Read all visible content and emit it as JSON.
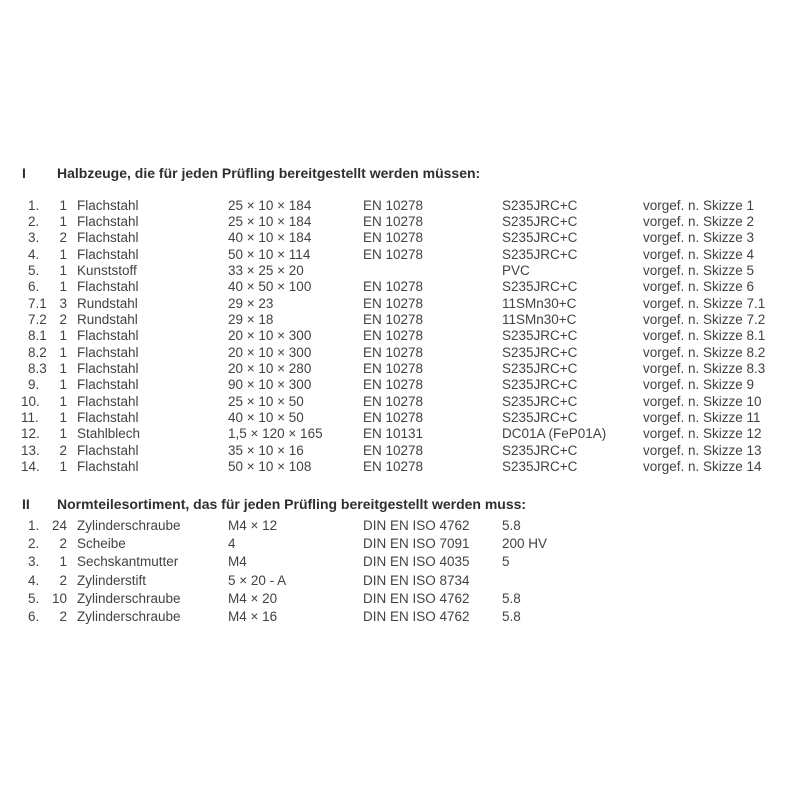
{
  "colors": {
    "background": "#ffffff",
    "body_text": "#424242",
    "heading_text": "#2f2f2f"
  },
  "sections": [
    {
      "numeral": "I",
      "title": "Halbzeuge, die für jeden Prüfling bereitgestellt werden müssen:",
      "columns": [
        "item-number",
        "quantity",
        "part-name",
        "dimensions",
        "standard",
        "material",
        "note"
      ],
      "rows": [
        [
          "1.",
          "1",
          "Flachstahl",
          "25 × 10 × 184",
          "EN 10278",
          "S235JRC+C",
          "vorgef. n. Skizze 1"
        ],
        [
          "2.",
          "1",
          "Flachstahl",
          "25 × 10 × 184",
          "EN 10278",
          "S235JRC+C",
          "vorgef. n. Skizze 2"
        ],
        [
          "3.",
          "2",
          "Flachstahl",
          "40 × 10 × 184",
          "EN 10278",
          "S235JRC+C",
          "vorgef. n. Skizze 3"
        ],
        [
          "4.",
          "1",
          "Flachstahl",
          "50 × 10 × 114",
          "EN 10278",
          "S235JRC+C",
          "vorgef. n. Skizze 4"
        ],
        [
          "5.",
          "1",
          "Kunststoff",
          "33 × 25 × 20",
          "",
          "PVC",
          "vorgef. n. Skizze 5"
        ],
        [
          "6.",
          "1",
          "Flachstahl",
          "40 × 50 × 100",
          "EN 10278",
          "S235JRC+C",
          "vorgef. n. Skizze 6"
        ],
        [
          "7.1",
          "3",
          "Rundstahl",
          "29 × 23",
          "EN 10278",
          "11SMn30+C",
          "vorgef. n. Skizze 7.1"
        ],
        [
          "7.2",
          "2",
          "Rundstahl",
          "29 × 18",
          "EN 10278",
          "11SMn30+C",
          "vorgef. n. Skizze 7.2"
        ],
        [
          "8.1",
          "1",
          "Flachstahl",
          "20 × 10 × 300",
          "EN 10278",
          "S235JRC+C",
          "vorgef. n. Skizze 8.1"
        ],
        [
          "8.2",
          "1",
          "Flachstahl",
          "20 × 10 × 300",
          "EN 10278",
          "S235JRC+C",
          "vorgef. n. Skizze 8.2"
        ],
        [
          "8.3",
          "1",
          "Flachstahl",
          "20 × 10 × 280",
          "EN 10278",
          "S235JRC+C",
          "vorgef. n. Skizze 8.3"
        ],
        [
          "9.",
          "1",
          "Flachstahl",
          "90 × 10 × 300",
          "EN 10278",
          "S235JRC+C",
          "vorgef. n. Skizze 9"
        ],
        [
          "10.",
          "1",
          "Flachstahl",
          "25 × 10 × 50",
          "EN 10278",
          "S235JRC+C",
          "vorgef. n. Skizze 10"
        ],
        [
          "11.",
          "1",
          "Flachstahl",
          "40 × 10 × 50",
          "EN 10278",
          "S235JRC+C",
          "vorgef. n. Skizze 11"
        ],
        [
          "12.",
          "1",
          "Stahlblech",
          "1,5 × 120 × 165",
          "EN 10131",
          "DC01A (FeP01A)",
          "vorgef. n. Skizze 12"
        ],
        [
          "13.",
          "2",
          "Flachstahl",
          "35 × 10 × 16",
          "EN 10278",
          "S235JRC+C",
          "vorgef. n. Skizze 13"
        ],
        [
          "14.",
          "1",
          "Flachstahl",
          "50 × 10 × 108",
          "EN 10278",
          "S235JRC+C",
          "vorgef. n. Skizze 14"
        ]
      ]
    },
    {
      "numeral": "II",
      "title": "Normteilesortiment, das für jeden Prüfling bereitgestellt werden muss:",
      "columns": [
        "item-number",
        "quantity",
        "part-name",
        "dimensions",
        "standard",
        "property-class",
        "note"
      ],
      "rows": [
        [
          "1.",
          "24",
          "Zylinderschraube",
          "M4 × 12",
          "DIN EN ISO 4762",
          "5.8",
          ""
        ],
        [
          "2.",
          "2",
          "Scheibe",
          "4",
          "DIN EN ISO 7091",
          "200 HV",
          ""
        ],
        [
          "3.",
          "1",
          "Sechskantmutter",
          "M4",
          "DIN EN ISO 4035",
          "5",
          ""
        ],
        [
          "4.",
          "2",
          "Zylinderstift",
          "5 × 20 - A",
          "DIN EN ISO 8734",
          "",
          ""
        ],
        [
          "5.",
          "10",
          "Zylinderschraube",
          "M4 × 20",
          "DIN EN ISO 4762",
          "5.8",
          ""
        ],
        [
          "6.",
          "2",
          "Zylinderschraube",
          "M4 × 16",
          "DIN EN ISO 4762",
          "5.8",
          ""
        ]
      ]
    }
  ]
}
